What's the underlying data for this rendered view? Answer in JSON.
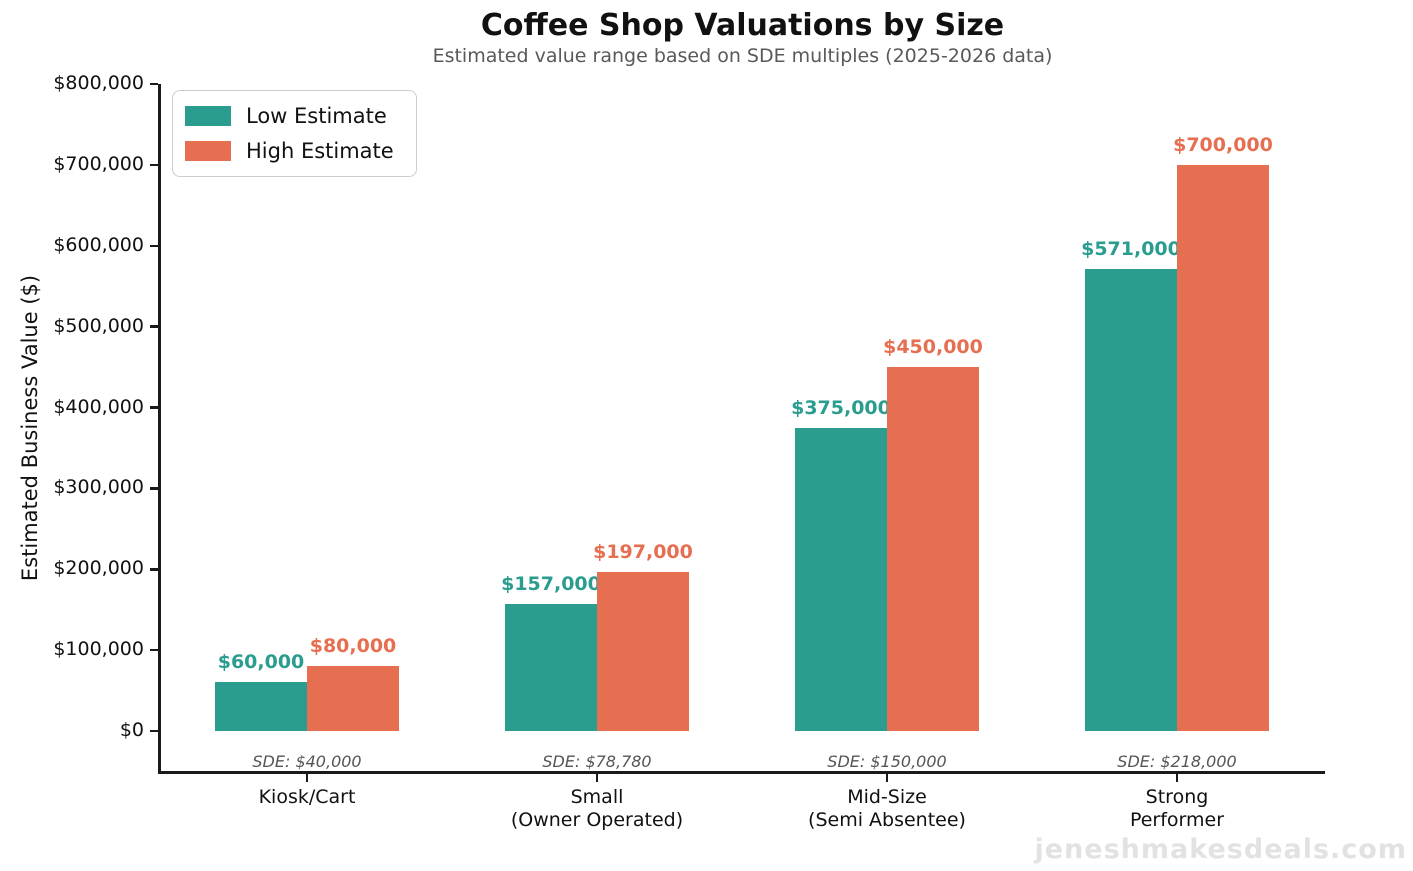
{
  "chart_data": {
    "type": "bar",
    "title": "Coffee Shop Valuations by Size",
    "subtitle": "Estimated value range based on SDE multiples (2025-2026 data)",
    "ylabel": "Estimated Business Value ($)",
    "categories": [
      "Kiosk/Cart",
      "Small\n(Owner Operated)",
      "Mid-Size\n(Semi Absentee)",
      "Strong\nPerformer"
    ],
    "sde_labels": [
      "SDE: $40,000",
      "SDE: $78,780",
      "SDE: $150,000",
      "SDE: $218,000"
    ],
    "series": [
      {
        "name": "Low Estimate",
        "color": "#2a9d8f",
        "values": [
          60000,
          157000,
          375000,
          571000
        ],
        "value_labels": [
          "$60,000",
          "$157,000",
          "$375,000",
          "$571,000"
        ]
      },
      {
        "name": "High Estimate",
        "color": "#e76f51",
        "values": [
          80000,
          197000,
          450000,
          700000
        ],
        "value_labels": [
          "$80,000",
          "$197,000",
          "$450,000",
          "$700,000"
        ]
      }
    ],
    "ylim": [
      0,
      800000
    ],
    "ytick_labels": [
      "$0",
      "$100,000",
      "$200,000",
      "$300,000",
      "$400,000",
      "$500,000",
      "$600,000",
      "$700,000",
      "$800,000"
    ],
    "legend_position": "upper left",
    "grid": false
  },
  "watermark": "jeneshmakesdeals.com"
}
